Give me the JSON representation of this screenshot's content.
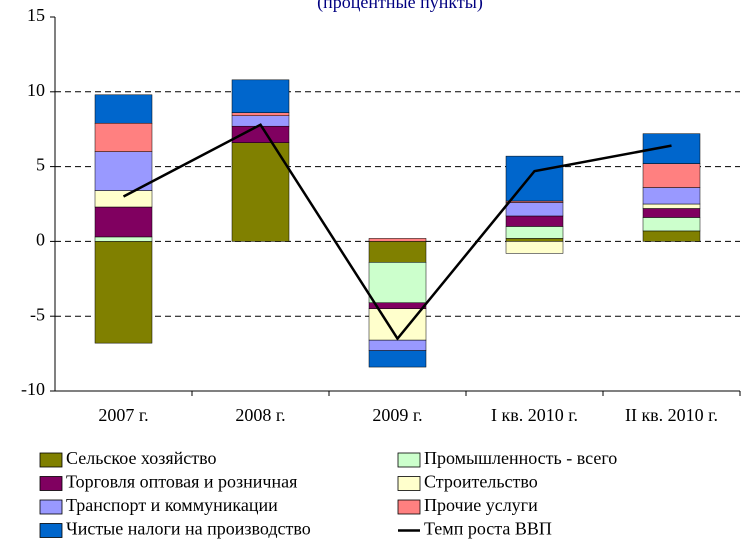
{
  "chart_data": {
    "type": "bar",
    "stacked": true,
    "title": "(процентные пункты)",
    "categories": [
      "2007 г.",
      "2008 г.",
      "2009 г.",
      "I кв. 2010 г.",
      "II кв. 2010 г."
    ],
    "series": [
      {
        "name": "Сельское хозяйство",
        "color": "#808000",
        "values": [
          -6.8,
          6.6,
          -1.4,
          0.2,
          0.7
        ]
      },
      {
        "name": "Промышленность - всего",
        "color": "#ccffcc",
        "values": [
          0.3,
          0,
          -2.7,
          0.8,
          0.9
        ]
      },
      {
        "name": "Торговля оптовая и розничная",
        "color": "#800060",
        "values": [
          2.0,
          1.1,
          -0.4,
          0.7,
          0.6
        ]
      },
      {
        "name": "Строительство",
        "color": "#ffffcc",
        "values": [
          1.1,
          0,
          -2.1,
          -0.8,
          0.3
        ]
      },
      {
        "name": "Транспорт и коммуникации",
        "color": "#9999ff",
        "values": [
          2.6,
          0.7,
          -0.7,
          0.9,
          1.1
        ]
      },
      {
        "name": "Прочие услуги",
        "color": "#ff8080",
        "values": [
          1.9,
          0.2,
          0.2,
          0.1,
          1.6
        ]
      },
      {
        "name": "Чистые налоги на производство",
        "color": "#0066cc",
        "values": [
          1.9,
          2.2,
          -1.1,
          3.0,
          2.0
        ]
      },
      {
        "name": "Темп роста ВВП",
        "color": "#000000",
        "type": "line",
        "values": [
          3.0,
          7.8,
          -6.5,
          4.7,
          6.4
        ]
      }
    ],
    "ylim": [
      -10,
      15
    ],
    "yticks": [
      -10,
      -5,
      0,
      5,
      10,
      15
    ],
    "grid": true,
    "legend": "bottom"
  }
}
